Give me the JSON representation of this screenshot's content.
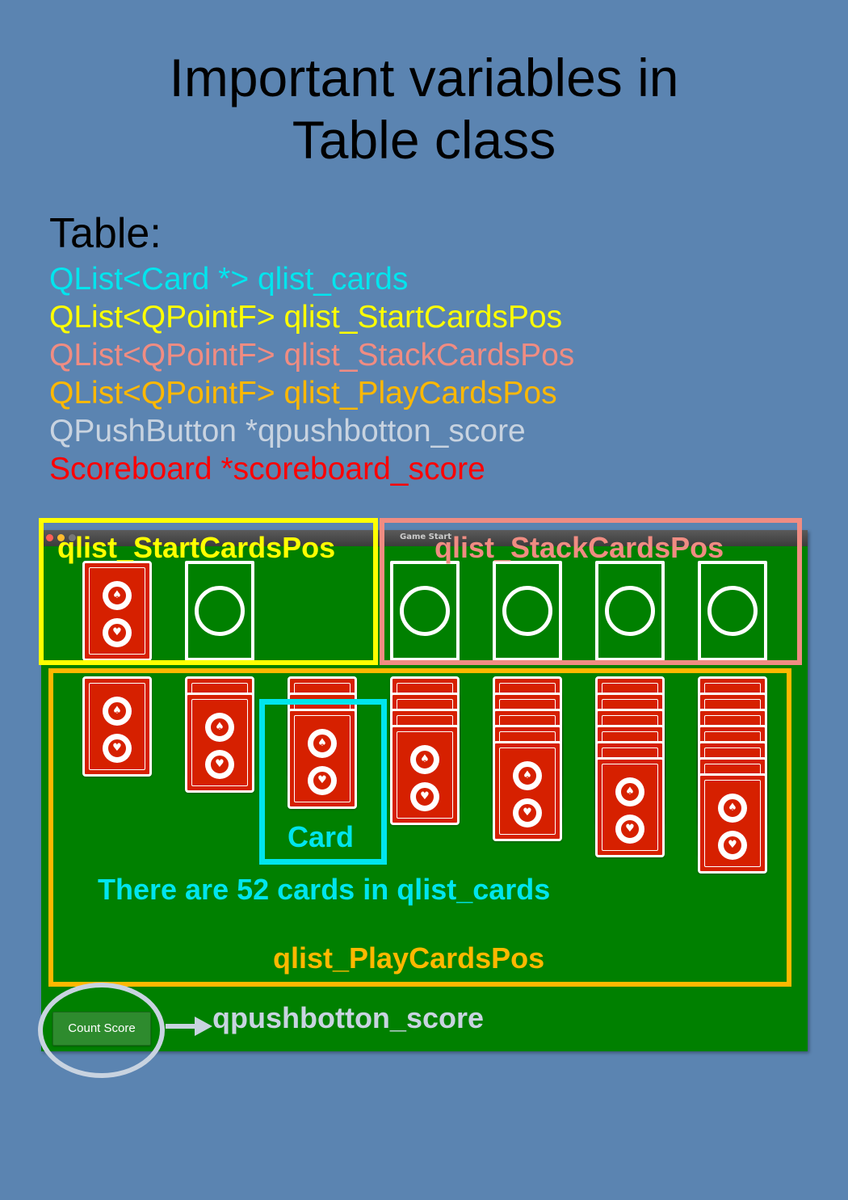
{
  "title": {
    "line1": "Important variables in",
    "line2": "Table class"
  },
  "variables": {
    "heading": "Table:",
    "items": [
      {
        "text": "QList<Card *>  qlist_cards",
        "color": "#00e5ee"
      },
      {
        "text": "QList<QPointF> qlist_StartCardsPos",
        "color": "#ffff00"
      },
      {
        "text": "QList<QPointF> qlist_StackCardsPos",
        "color": "#f08c82"
      },
      {
        "text": "QList<QPointF> qlist_PlayCardsPos",
        "color": "#ffb800"
      },
      {
        "text": "QPushButton *qpushbotton_score",
        "color": "#c8d3e0"
      },
      {
        "text": "Scoreboard *scoreboard_score",
        "color": "#ff0000"
      }
    ]
  },
  "window": {
    "title": "Game Start",
    "background": "#008000",
    "card_back_color": "#d62000",
    "count_button_label": "Count Score"
  },
  "annotations": {
    "start_label": "qlist_StartCardsPos",
    "stack_label": "qlist_StackCardsPos",
    "card_label": "Card",
    "cards_note": "There are 52 cards in qlist_cards",
    "play_label": "qlist_PlayCardsPos",
    "button_label": "qpushbotton_score"
  },
  "colors": {
    "start": "#ffff00",
    "stack": "#f08c82",
    "play": "#ffb800",
    "card": "#00e5ee",
    "button": "#c8d3e0"
  },
  "layout": {
    "play_columns": 7
  }
}
